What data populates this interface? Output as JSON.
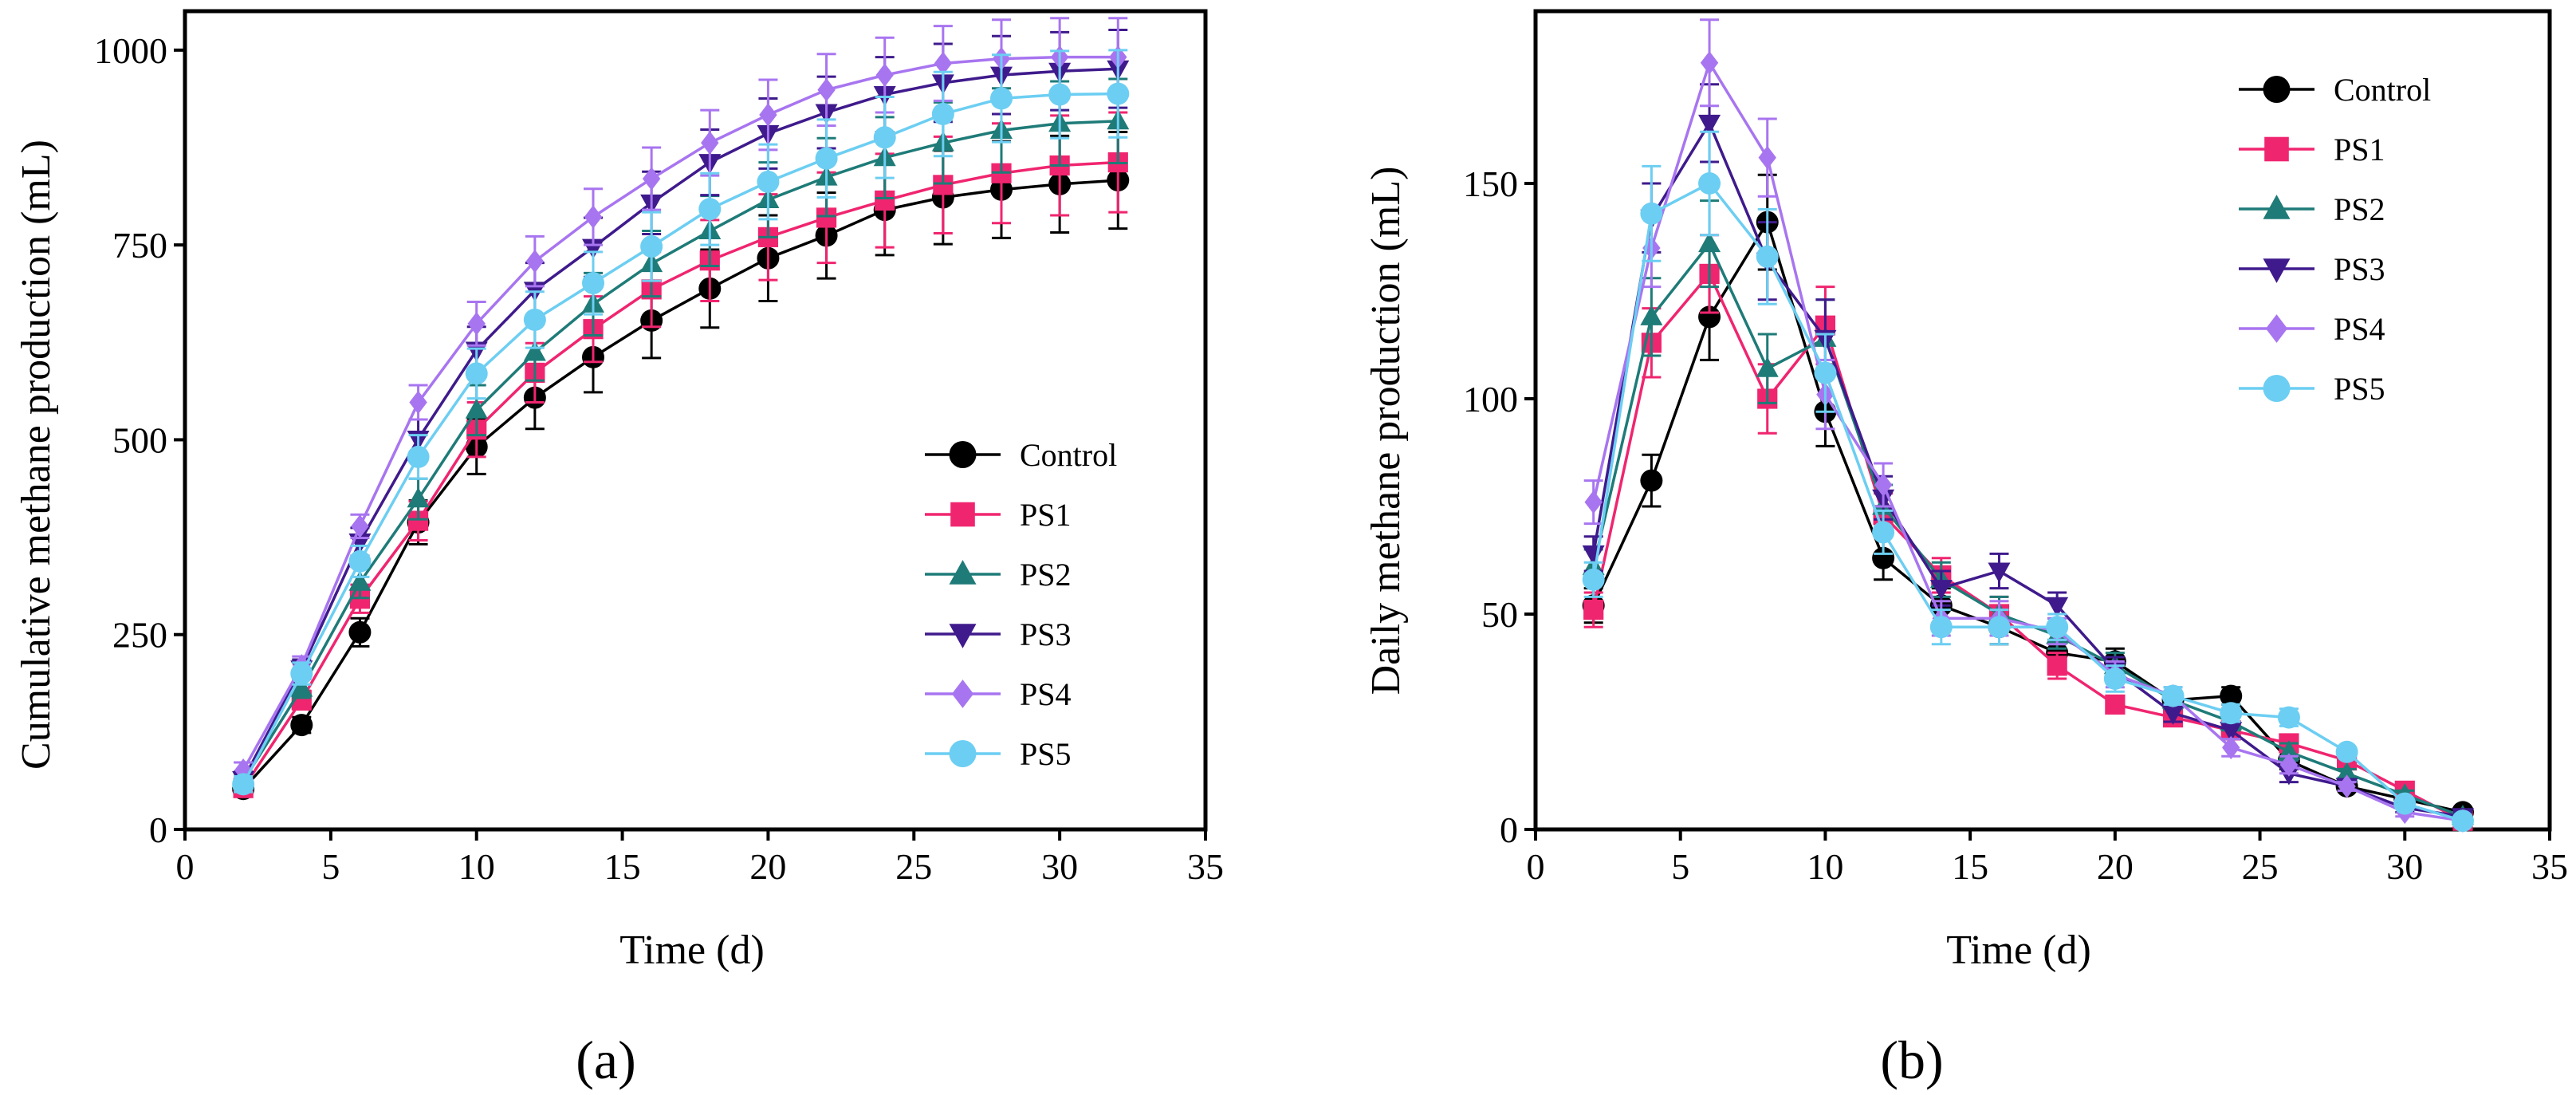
{
  "series_styles": [
    {
      "name": "Control",
      "color": "#000000",
      "marker": "circle"
    },
    {
      "name": "PS1",
      "color": "#F0256F",
      "marker": "square"
    },
    {
      "name": "PS2",
      "color": "#1E7B78",
      "marker": "triangle-up"
    },
    {
      "name": "PS3",
      "color": "#3F1A8C",
      "marker": "triangle-down"
    },
    {
      "name": "PS4",
      "color": "#A875F0",
      "marker": "diamond"
    },
    {
      "name": "PS5",
      "color": "#6CCEF2",
      "marker": "circle"
    }
  ],
  "chart_data": [
    {
      "panel": "(a)",
      "type": "line",
      "xlabel": "Time (d)",
      "ylabel": "Cumulative methane production (mL)",
      "xlim": [
        0,
        35
      ],
      "ylim": [
        0,
        1050
      ],
      "xticks": [
        0,
        5,
        10,
        15,
        20,
        25,
        30,
        35
      ],
      "yticks": [
        0,
        250,
        500,
        750,
        1000
      ],
      "legend": "bottom-right",
      "x": [
        2,
        4,
        6,
        8,
        10,
        12,
        14,
        16,
        18,
        20,
        22,
        24,
        26,
        28,
        30,
        32
      ],
      "series": [
        {
          "name": "Control",
          "values": [
            52,
            134,
            253,
            394,
            491,
            554,
            606,
            653,
            694,
            733,
            762,
            795,
            811,
            821,
            828,
            833
          ],
          "errors": [
            10,
            10,
            18,
            28,
            35,
            40,
            45,
            48,
            50,
            55,
            55,
            58,
            60,
            62,
            62,
            62
          ]
        },
        {
          "name": "PS1",
          "values": [
            53,
            166,
            296,
            396,
            513,
            586,
            642,
            693,
            730,
            760,
            785,
            807,
            827,
            842,
            852,
            856
          ],
          "errors": [
            10,
            12,
            18,
            25,
            35,
            38,
            42,
            48,
            52,
            55,
            58,
            60,
            62,
            64,
            64,
            64
          ]
        },
        {
          "name": "PS2",
          "values": [
            62,
            181,
            317,
            424,
            538,
            612,
            674,
            726,
            768,
            808,
            837,
            862,
            881,
            897,
            906,
            909
          ],
          "errors": [
            10,
            12,
            20,
            26,
            32,
            36,
            40,
            42,
            45,
            48,
            50,
            52,
            52,
            54,
            54,
            54
          ]
        },
        {
          "name": "PS3",
          "values": [
            64,
            206,
            369,
            501,
            615,
            692,
            747,
            804,
            856,
            893,
            920,
            943,
            958,
            968,
            973,
            976
          ],
          "errors": [
            10,
            12,
            18,
            25,
            30,
            35,
            38,
            40,
            42,
            45,
            46,
            48,
            50,
            50,
            50,
            50
          ]
        },
        {
          "name": "PS4",
          "values": [
            76,
            210,
            389,
            548,
            649,
            729,
            786,
            835,
            881,
            917,
            949,
            968,
            983,
            989,
            991,
            991
          ],
          "errors": [
            10,
            12,
            15,
            22,
            28,
            32,
            36,
            40,
            42,
            45,
            46,
            48,
            48,
            50,
            50,
            50
          ]
        },
        {
          "name": "PS5",
          "values": [
            58,
            200,
            344,
            478,
            585,
            654,
            701,
            748,
            796,
            831,
            861,
            888,
            918,
            938,
            943,
            944
          ],
          "errors": [
            10,
            14,
            20,
            28,
            32,
            36,
            40,
            44,
            46,
            48,
            50,
            52,
            54,
            56,
            56,
            56
          ]
        }
      ]
    },
    {
      "panel": "(b)",
      "type": "line",
      "xlabel": "Time (d)",
      "ylabel": "Daily methane production (mL)",
      "xlim": [
        0,
        35
      ],
      "ylim": [
        0,
        190
      ],
      "xticks": [
        0,
        5,
        10,
        15,
        20,
        25,
        30,
        35
      ],
      "yticks": [
        0,
        50,
        100,
        150
      ],
      "legend": "top-right",
      "x": [
        2,
        4,
        6,
        8,
        10,
        12,
        14,
        16,
        18,
        20,
        22,
        24,
        26,
        28,
        30,
        32
      ],
      "series": [
        {
          "name": "Control",
          "values": [
            52,
            81,
            119,
            141,
            97,
            63,
            52,
            47,
            41,
            39,
            30,
            31,
            16,
            10,
            7,
            4
          ],
          "errors": [
            4,
            6,
            10,
            11,
            8,
            5,
            4,
            4,
            3,
            3,
            2,
            2,
            2,
            1,
            1,
            1
          ]
        },
        {
          "name": "PS1",
          "values": [
            51,
            113,
            129,
            100,
            117,
            73,
            59,
            50,
            38,
            29,
            26,
            23,
            20,
            16,
            9,
            2
          ],
          "errors": [
            4,
            8,
            9,
            8,
            9,
            5,
            4,
            4,
            3,
            2,
            2,
            2,
            2,
            1,
            1,
            1
          ]
        },
        {
          "name": "PS2",
          "values": [
            61,
            119,
            136,
            107,
            114,
            75,
            58,
            50,
            45,
            38,
            30,
            25,
            18,
            13,
            8,
            3
          ],
          "errors": [
            4,
            9,
            10,
            8,
            9,
            5,
            4,
            4,
            3,
            3,
            2,
            2,
            2,
            1,
            1,
            1
          ]
        },
        {
          "name": "PS3",
          "values": [
            64,
            142,
            164,
            132,
            114,
            77,
            56,
            60,
            52,
            37,
            27,
            23,
            13,
            10,
            5,
            3
          ],
          "errors": [
            4,
            8,
            9,
            9,
            9,
            5,
            4,
            4,
            3,
            3,
            2,
            2,
            2,
            1,
            1,
            1
          ]
        },
        {
          "name": "PS4",
          "values": [
            76,
            135,
            178,
            156,
            101,
            80,
            49,
            49,
            46,
            36,
            31,
            19,
            15,
            10,
            4,
            2
          ],
          "errors": [
            5,
            9,
            10,
            9,
            8,
            5,
            4,
            4,
            3,
            3,
            2,
            2,
            2,
            1,
            1,
            1
          ]
        },
        {
          "name": "PS5",
          "values": [
            58,
            143,
            150,
            133,
            106,
            69,
            47,
            47,
            47,
            35,
            31,
            27,
            26,
            18,
            6,
            2
          ],
          "errors": [
            4,
            11,
            12,
            11,
            9,
            5,
            4,
            4,
            3,
            3,
            2,
            2,
            2,
            1,
            1,
            1
          ]
        }
      ]
    }
  ]
}
